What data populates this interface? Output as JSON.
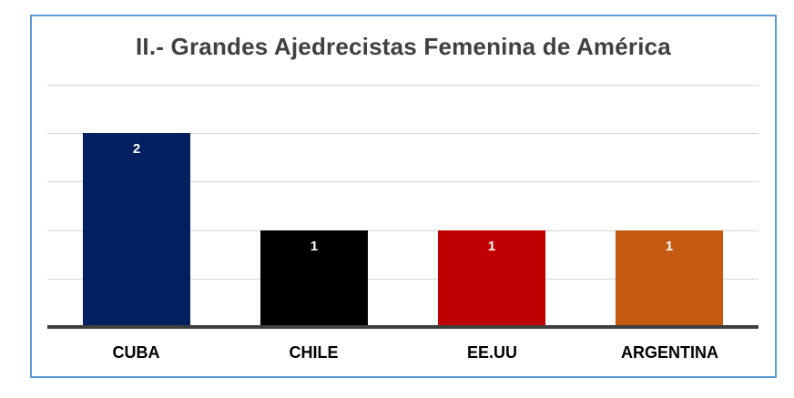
{
  "frame": {
    "border_color": "#5B9BD5",
    "background_color": "#FFFFFF"
  },
  "chart_data": {
    "type": "bar",
    "title": "II.- Grandes Ajedrecistas Femenina de América",
    "title_color": "#404040",
    "categories": [
      "CUBA",
      "CHILE",
      "EE.UU",
      "ARGENTINA"
    ],
    "values": [
      2,
      1,
      1,
      1
    ],
    "data_labels": [
      "2",
      "1",
      "1",
      "1"
    ],
    "data_label_color": "#FFFFFF",
    "bar_colors": [
      "#002060",
      "#000000",
      "#C00000",
      "#C55A11"
    ],
    "xlabel": "",
    "ylabel": "",
    "ylim": [
      0,
      2.5
    ],
    "gridline_step": 0.5,
    "gridline_color": "#D6D6D6",
    "axis_line_color": "#3F3F3F",
    "y_tick_labels": [],
    "legend_position": "none",
    "grid": "horizontal"
  }
}
